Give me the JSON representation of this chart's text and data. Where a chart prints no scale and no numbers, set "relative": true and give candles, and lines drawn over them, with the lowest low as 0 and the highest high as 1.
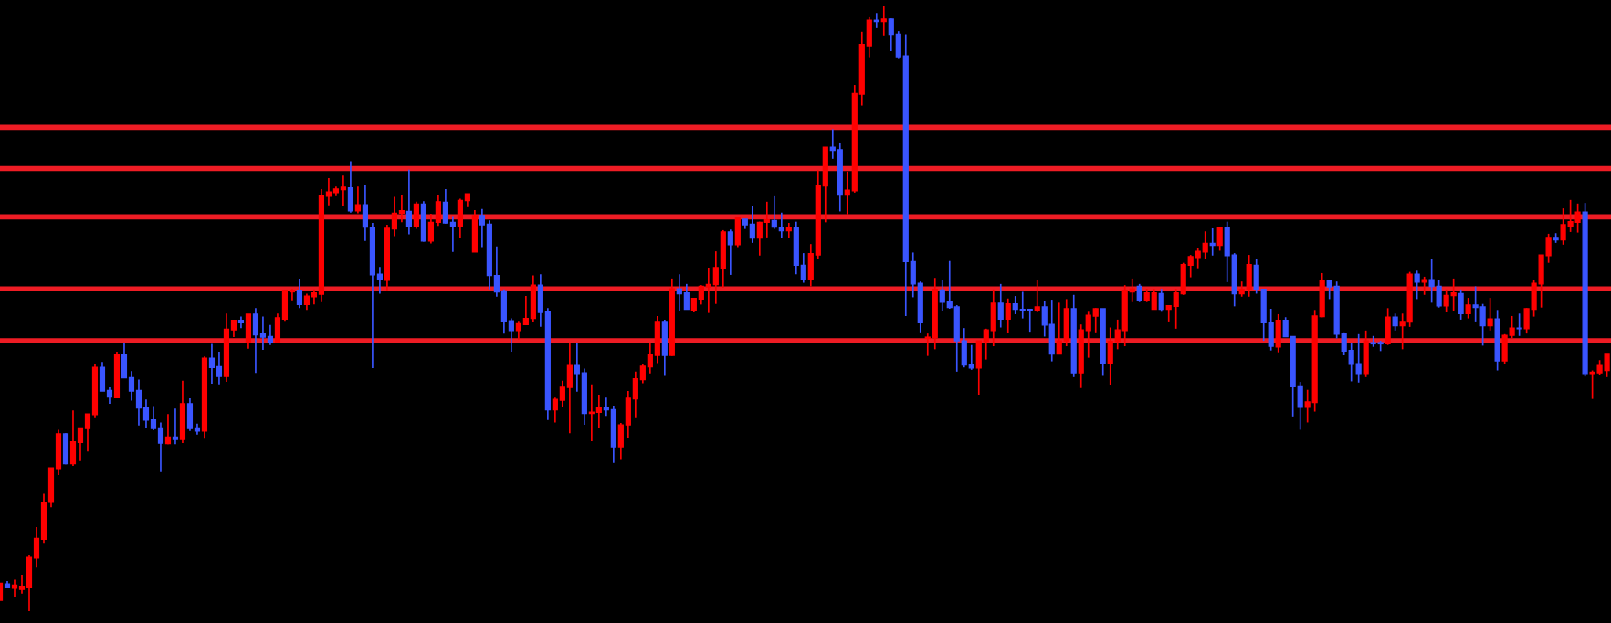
{
  "chart_data": {
    "type": "candlestick",
    "relative": true,
    "categories": [
      null,
      null,
      null,
      null,
      null,
      null,
      null,
      null,
      null,
      null,
      null,
      null,
      null,
      null,
      null,
      null,
      null,
      null,
      null,
      null,
      null,
      null,
      null,
      null,
      null,
      null,
      null,
      null,
      null,
      null,
      null,
      null,
      null,
      null,
      null,
      null,
      null,
      null,
      null,
      null,
      null,
      null,
      null,
      null,
      null,
      null,
      null,
      null,
      null,
      null,
      null,
      null,
      null,
      null,
      null,
      null,
      null,
      null,
      null,
      null,
      null,
      null,
      null,
      null,
      null,
      null,
      null,
      null,
      null,
      null,
      null,
      null,
      null,
      null,
      null,
      null,
      null,
      null,
      null,
      null,
      null,
      null,
      null,
      null,
      null,
      null,
      null,
      null,
      null,
      null,
      null,
      null,
      null,
      null,
      null,
      null,
      null,
      null,
      null,
      null,
      null,
      null,
      null,
      null,
      null,
      null,
      null,
      null,
      null,
      null,
      null,
      null,
      null,
      null,
      null,
      null,
      null,
      null,
      null,
      null,
      null,
      null,
      null,
      null,
      null,
      null,
      null,
      null,
      null,
      null,
      null,
      null,
      null,
      null,
      null,
      null,
      null,
      null,
      null,
      null,
      null,
      null,
      null,
      null,
      null,
      null,
      null,
      null,
      null,
      null,
      null,
      null,
      null,
      null,
      null,
      null,
      null,
      null,
      null,
      null,
      null,
      null,
      null,
      null,
      null,
      null,
      null,
      null,
      null,
      null,
      null,
      null,
      null,
      null,
      null,
      null,
      null,
      null,
      null,
      null,
      null,
      null,
      null,
      null,
      null,
      null,
      null,
      null,
      null,
      null,
      null,
      null,
      null,
      null,
      null,
      null,
      null,
      null,
      null,
      null,
      null,
      null,
      null,
      null,
      null,
      null,
      null,
      null,
      null,
      null,
      null,
      null,
      null,
      null,
      null,
      null,
      null,
      null,
      null,
      null,
      null
    ],
    "colors": [
      "#ff0000",
      "#3a55ff",
      "#ff0000",
      "#ff0000",
      "#ff0000",
      "#ff0000",
      "#ff0000",
      "#ff0000",
      "#ff0000",
      "#3a55ff",
      "#ff0000",
      "#ff0000",
      "#ff0000",
      "#ff0000",
      "#3a55ff",
      "#3a55ff",
      "#ff0000",
      "#3a55ff",
      "#3a55ff",
      "#3a55ff",
      "#3a55ff",
      "#3a55ff",
      "#3a55ff",
      "#ff0000",
      "#3a55ff",
      "#ff0000",
      "#3a55ff",
      "#3a55ff",
      "#ff0000",
      "#3a55ff",
      "#3a55ff",
      "#ff0000",
      "#ff0000",
      "#3a55ff",
      "#ff0000",
      "#3a55ff",
      "#3a55ff",
      "#3a55ff",
      "#ff0000",
      "#ff0000",
      "#ff0000",
      "#3a55ff",
      "#ff0000",
      "#ff0000",
      "#ff0000",
      "#ff0000",
      "#ff0000",
      "#ff0000",
      "#3a55ff",
      "#ff0000",
      "#3a55ff",
      "#3a55ff",
      "#3a55ff",
      "#ff0000",
      "#ff0000",
      "#ff0000",
      "#3a55ff",
      "#ff0000",
      "#3a55ff",
      "#ff0000",
      "#ff0000",
      "#3a55ff",
      "#3a55ff",
      "#ff0000",
      "#ff0000",
      "#ff0000",
      "#3a55ff",
      "#3a55ff",
      "#3a55ff",
      "#3a55ff",
      "#3a55ff",
      "#ff0000",
      "#ff0000",
      "#ff0000",
      "#3a55ff",
      "#3a55ff",
      "#ff0000",
      "#ff0000",
      "#ff0000",
      "#3a55ff",
      "#3a55ff",
      "#ff0000",
      "#ff0000",
      "#3a55ff",
      "#3a55ff",
      "#ff0000",
      "#ff0000",
      "#ff0000",
      "#ff0000",
      "#ff0000",
      "#ff0000",
      "#3a55ff",
      "#ff0000",
      "#3a55ff",
      "#3a55ff",
      "#ff0000",
      "#ff0000",
      "#ff0000",
      "#ff0000",
      "#ff0000",
      "#3a55ff",
      "#ff0000",
      "#3a55ff",
      "#3a55ff",
      "#ff0000",
      "#ff0000",
      "#3a55ff",
      "#3a55ff",
      "#ff0000",
      "#3a55ff",
      "#3a55ff",
      "#ff0000",
      "#ff0000",
      "#ff0000",
      "#3a55ff",
      "#3a55ff",
      "#ff0000",
      "#ff0000",
      "#ff0000",
      "#ff0000",
      "#3a55ff",
      "#ff0000",
      "#3a55ff",
      "#3a55ff",
      "#3a55ff",
      "#3a55ff",
      "#3a55ff",
      "#ff0000",
      "#ff0000",
      "#3a55ff",
      "#3a55ff",
      "#3a55ff",
      "#3a55ff",
      "#3a55ff",
      "#ff0000",
      "#ff0000",
      "#ff0000",
      "#3a55ff",
      "#ff0000",
      "#3a55ff",
      "#3a55ff",
      "#3a55ff",
      "#ff0000",
      "#3a55ff",
      "#3a55ff",
      "#ff0000",
      "#ff0000",
      "#3a55ff",
      "#ff0000",
      "#ff0000",
      "#ff0000",
      "#3a55ff",
      "#ff0000",
      "#ff0000",
      "#ff0000",
      "#ff0000",
      "#3a55ff",
      "#ff0000",
      "#ff0000",
      "#3a55ff",
      "#ff0000",
      "#ff0000",
      "#ff0000",
      "#ff0000",
      "#ff0000",
      "#ff0000",
      "#3a55ff",
      "#ff0000",
      "#3a55ff",
      "#3a55ff",
      "#ff0000",
      "#ff0000",
      "#3a55ff",
      "#3a55ff",
      "#3a55ff",
      "#ff0000",
      "#3a55ff",
      "#3a55ff",
      "#3a55ff",
      "#ff0000",
      "#ff0000",
      "#ff0000",
      "#3a55ff",
      "#3a55ff",
      "#3a55ff",
      "#3a55ff",
      "#3a55ff",
      "#ff0000",
      "#3a55ff",
      "#3a55ff",
      "#ff0000",
      "#3a55ff",
      "#ff0000",
      "#ff0000",
      "#3a55ff",
      "#ff0000",
      "#3a55ff",
      "#3a55ff",
      "#ff0000",
      "#ff0000",
      "#3a55ff",
      "#ff0000",
      "#3a55ff",
      "#3a55ff",
      "#ff0000",
      "#3a55ff",
      "#ff0000",
      "#ff0000",
      "#3a55ff",
      "#ff0000",
      "#ff0000",
      "#ff0000",
      "#ff0000",
      "#3a55ff",
      "#ff0000",
      "#ff0000",
      "#ff0000",
      "#3a55ff",
      "#ff0000",
      "#ff0000",
      "#ff0000"
    ],
    "ohlc": [
      [
        0.018,
        0.046,
        0.018,
        0.046
      ],
      [
        0.045,
        0.05,
        0.038,
        0.039
      ],
      [
        0.038,
        0.052,
        0.023,
        0.043
      ],
      [
        0.036,
        0.06,
        0.029,
        0.04
      ],
      [
        0.039,
        0.092,
        0.0,
        0.089
      ],
      [
        0.088,
        0.139,
        0.072,
        0.12
      ],
      [
        0.119,
        0.194,
        0.113,
        0.18
      ],
      [
        0.18,
        0.237,
        0.172,
        0.237
      ],
      [
        0.236,
        0.3,
        0.225,
        0.293
      ],
      [
        0.293,
        0.294,
        0.243,
        0.244
      ],
      [
        0.244,
        0.332,
        0.24,
        0.28
      ],
      [
        0.279,
        0.303,
        0.248,
        0.303
      ],
      [
        0.302,
        0.326,
        0.264,
        0.326
      ],
      [
        0.325,
        0.409,
        0.319,
        0.403
      ],
      [
        0.403,
        0.412,
        0.364,
        0.364
      ],
      [
        0.365,
        0.37,
        0.343,
        0.354
      ],
      [
        0.353,
        0.429,
        0.353,
        0.424
      ],
      [
        0.424,
        0.444,
        0.386,
        0.386
      ],
      [
        0.386,
        0.397,
        0.348,
        0.364
      ],
      [
        0.365,
        0.383,
        0.307,
        0.336
      ],
      [
        0.336,
        0.35,
        0.303,
        0.316
      ],
      [
        0.316,
        0.339,
        0.299,
        0.302
      ],
      [
        0.303,
        0.312,
        0.23,
        0.278
      ],
      [
        0.277,
        0.326,
        0.276,
        0.288
      ],
      [
        0.288,
        0.335,
        0.276,
        0.284
      ],
      [
        0.284,
        0.381,
        0.278,
        0.343
      ],
      [
        0.343,
        0.352,
        0.298,
        0.302
      ],
      [
        0.303,
        0.31,
        0.292,
        0.298
      ],
      [
        0.298,
        0.421,
        0.285,
        0.418
      ],
      [
        0.418,
        0.442,
        0.376,
        0.403
      ],
      [
        0.404,
        0.429,
        0.375,
        0.388
      ],
      [
        0.388,
        0.492,
        0.379,
        0.466
      ],
      [
        0.465,
        0.481,
        0.453,
        0.481
      ],
      [
        0.481,
        0.487,
        0.468,
        0.477
      ],
      [
        0.445,
        0.491,
        0.434,
        0.491
      ],
      [
        0.491,
        0.501,
        0.394,
        0.457
      ],
      [
        0.458,
        0.487,
        0.432,
        0.453
      ],
      [
        0.454,
        0.473,
        0.44,
        0.445
      ],
      [
        0.444,
        0.492,
        0.444,
        0.485
      ],
      [
        0.483,
        0.53,
        0.48,
        0.53
      ],
      [
        0.528,
        0.533,
        0.514,
        0.53
      ],
      [
        0.53,
        0.55,
        0.501,
        0.507
      ],
      [
        0.507,
        0.525,
        0.498,
        0.521
      ],
      [
        0.52,
        0.532,
        0.507,
        0.526
      ],
      [
        0.524,
        0.698,
        0.511,
        0.687
      ],
      [
        0.686,
        0.716,
        0.671,
        0.693
      ],
      [
        0.692,
        0.702,
        0.686,
        0.698
      ],
      [
        0.697,
        0.72,
        0.669,
        0.701
      ],
      [
        0.7,
        0.744,
        0.659,
        0.662
      ],
      [
        0.662,
        0.702,
        0.658,
        0.672
      ],
      [
        0.672,
        0.705,
        0.612,
        0.635
      ],
      [
        0.635,
        0.642,
        0.402,
        0.556
      ],
      [
        0.557,
        0.569,
        0.525,
        0.548
      ],
      [
        0.547,
        0.639,
        0.529,
        0.633
      ],
      [
        0.632,
        0.685,
        0.62,
        0.658
      ],
      [
        0.658,
        0.689,
        0.643,
        0.662
      ],
      [
        0.661,
        0.73,
        0.623,
        0.637
      ],
      [
        0.636,
        0.677,
        0.632,
        0.673
      ],
      [
        0.673,
        0.678,
        0.611,
        0.612
      ],
      [
        0.612,
        0.657,
        0.608,
        0.643
      ],
      [
        0.643,
        0.689,
        0.637,
        0.677
      ],
      [
        0.676,
        0.698,
        0.641,
        0.642
      ],
      [
        0.643,
        0.652,
        0.594,
        0.636
      ],
      [
        0.636,
        0.682,
        0.618,
        0.679
      ],
      [
        0.679,
        0.69,
        0.668,
        0.69
      ],
      [
        0.594,
        0.663,
        0.594,
        0.654
      ],
      [
        0.654,
        0.665,
        0.602,
        0.639
      ],
      [
        0.64,
        0.646,
        0.532,
        0.555
      ],
      [
        0.555,
        0.603,
        0.52,
        0.528
      ],
      [
        0.528,
        0.532,
        0.459,
        0.479
      ],
      [
        0.48,
        0.484,
        0.429,
        0.464
      ],
      [
        0.464,
        0.48,
        0.449,
        0.475
      ],
      [
        0.474,
        0.521,
        0.473,
        0.484
      ],
      [
        0.484,
        0.555,
        0.478,
        0.539
      ],
      [
        0.539,
        0.557,
        0.47,
        0.494
      ],
      [
        0.495,
        0.501,
        0.316,
        0.333
      ],
      [
        0.333,
        0.353,
        0.312,
        0.35
      ],
      [
        0.349,
        0.381,
        0.338,
        0.37
      ],
      [
        0.37,
        0.443,
        0.294,
        0.406
      ],
      [
        0.406,
        0.444,
        0.363,
        0.393
      ],
      [
        0.394,
        0.401,
        0.308,
        0.327
      ],
      [
        0.327,
        0.375,
        0.281,
        0.329
      ],
      [
        0.329,
        0.358,
        0.302,
        0.337
      ],
      [
        0.337,
        0.353,
        0.323,
        0.333
      ],
      [
        0.333,
        0.34,
        0.245,
        0.272
      ],
      [
        0.272,
        0.311,
        0.25,
        0.308
      ],
      [
        0.308,
        0.364,
        0.287,
        0.352
      ],
      [
        0.351,
        0.396,
        0.319,
        0.384
      ],
      [
        0.383,
        0.408,
        0.377,
        0.405
      ],
      [
        0.404,
        0.444,
        0.393,
        0.424
      ],
      [
        0.423,
        0.488,
        0.41,
        0.479
      ],
      [
        0.479,
        0.482,
        0.389,
        0.423
      ],
      [
        0.423,
        0.55,
        0.422,
        0.533
      ],
      [
        0.533,
        0.557,
        0.496,
        0.525
      ],
      [
        0.526,
        0.541,
        0.499,
        0.499
      ],
      [
        0.498,
        0.518,
        0.494,
        0.517
      ],
      [
        0.516,
        0.539,
        0.507,
        0.537
      ],
      [
        0.536,
        0.568,
        0.493,
        0.54
      ],
      [
        0.54,
        0.595,
        0.508,
        0.568
      ],
      [
        0.567,
        0.63,
        0.535,
        0.627
      ],
      [
        0.627,
        0.631,
        0.556,
        0.606
      ],
      [
        0.606,
        0.65,
        0.602,
        0.65
      ],
      [
        0.648,
        0.648,
        0.632,
        0.639
      ],
      [
        0.64,
        0.67,
        0.609,
        0.617
      ],
      [
        0.617,
        0.644,
        0.588,
        0.643
      ],
      [
        0.643,
        0.677,
        0.618,
        0.647
      ],
      [
        0.646,
        0.686,
        0.632,
        0.635
      ],
      [
        0.635,
        0.659,
        0.617,
        0.629
      ],
      [
        0.629,
        0.642,
        0.617,
        0.635
      ],
      [
        0.635,
        0.644,
        0.557,
        0.572
      ],
      [
        0.572,
        0.592,
        0.543,
        0.549
      ],
      [
        0.549,
        0.607,
        0.537,
        0.591
      ],
      [
        0.589,
        0.729,
        0.582,
        0.704
      ],
      [
        0.703,
        0.767,
        0.643,
        0.767
      ],
      [
        0.767,
        0.797,
        0.748,
        0.762
      ],
      [
        0.763,
        0.775,
        0.661,
        0.688
      ],
      [
        0.688,
        0.727,
        0.656,
        0.696
      ],
      [
        0.695,
        0.87,
        0.692,
        0.856
      ],
      [
        0.855,
        0.958,
        0.836,
        0.937
      ],
      [
        0.935,
        0.982,
        0.916,
        0.977
      ],
      [
        0.977,
        0.989,
        0.964,
        0.975
      ],
      [
        0.975,
        1.0,
        0.952,
        0.979
      ],
      [
        0.979,
        0.98,
        0.926,
        0.954
      ],
      [
        0.954,
        0.959,
        0.913,
        0.917
      ],
      [
        0.918,
        0.954,
        0.488,
        0.578
      ],
      [
        0.578,
        0.593,
        0.519,
        0.541
      ],
      [
        0.542,
        0.545,
        0.461,
        0.477
      ],
      [
        0.451,
        0.459,
        0.422,
        0.453
      ],
      [
        0.452,
        0.551,
        0.433,
        0.532
      ],
      [
        0.531,
        0.547,
        0.496,
        0.511
      ],
      [
        0.512,
        0.579,
        0.5,
        0.502
      ],
      [
        0.503,
        0.506,
        0.396,
        0.447
      ],
      [
        0.447,
        0.468,
        0.403,
        0.407
      ],
      [
        0.408,
        0.44,
        0.399,
        0.402
      ],
      [
        0.402,
        0.447,
        0.358,
        0.447
      ],
      [
        0.446,
        0.467,
        0.416,
        0.465
      ],
      [
        0.464,
        0.532,
        0.438,
        0.509
      ],
      [
        0.509,
        0.541,
        0.469,
        0.483
      ],
      [
        0.483,
        0.517,
        0.46,
        0.508
      ],
      [
        0.508,
        0.521,
        0.491,
        0.499
      ],
      [
        0.499,
        0.528,
        0.484,
        0.497
      ],
      [
        0.499,
        0.5,
        0.462,
        0.497
      ],
      [
        0.497,
        0.547,
        0.494,
        0.503
      ],
      [
        0.503,
        0.513,
        0.454,
        0.473
      ],
      [
        0.474,
        0.515,
        0.413,
        0.425
      ],
      [
        0.425,
        0.51,
        0.425,
        0.447
      ],
      [
        0.447,
        0.516,
        0.438,
        0.5
      ],
      [
        0.5,
        0.523,
        0.387,
        0.394
      ],
      [
        0.394,
        0.474,
        0.369,
        0.465
      ],
      [
        0.464,
        0.495,
        0.419,
        0.489
      ],
      [
        0.488,
        0.501,
        0.461,
        0.5
      ],
      [
        0.5,
        0.5,
        0.389,
        0.409
      ],
      [
        0.409,
        0.469,
        0.374,
        0.446
      ],
      [
        0.446,
        0.482,
        0.433,
        0.465
      ],
      [
        0.464,
        0.539,
        0.438,
        0.53
      ],
      [
        0.528,
        0.55,
        0.511,
        0.533
      ],
      [
        0.537,
        0.541,
        0.511,
        0.514
      ],
      [
        0.514,
        0.533,
        0.511,
        0.526
      ],
      [
        0.499,
        0.533,
        0.499,
        0.526
      ],
      [
        0.525,
        0.533,
        0.495,
        0.499
      ],
      [
        0.499,
        0.506,
        0.479,
        0.505
      ],
      [
        0.504,
        0.533,
        0.467,
        0.526
      ],
      [
        0.525,
        0.576,
        0.523,
        0.573
      ],
      [
        0.572,
        0.589,
        0.552,
        0.586
      ],
      [
        0.585,
        0.601,
        0.567,
        0.595
      ],
      [
        0.594,
        0.628,
        0.582,
        0.608
      ],
      [
        0.608,
        0.633,
        0.588,
        0.605
      ],
      [
        0.605,
        0.635,
        0.596,
        0.635
      ],
      [
        0.635,
        0.644,
        0.544,
        0.588
      ],
      [
        0.589,
        0.592,
        0.504,
        0.525
      ],
      [
        0.525,
        0.545,
        0.52,
        0.532
      ],
      [
        0.532,
        0.589,
        0.52,
        0.573
      ],
      [
        0.572,
        0.582,
        0.525,
        0.532
      ],
      [
        0.532,
        0.532,
        0.447,
        0.477
      ],
      [
        0.477,
        0.5,
        0.431,
        0.438
      ],
      [
        0.437,
        0.491,
        0.428,
        0.481
      ],
      [
        0.481,
        0.486,
        0.454,
        0.454
      ],
      [
        0.454,
        0.454,
        0.322,
        0.371
      ],
      [
        0.371,
        0.379,
        0.3,
        0.337
      ],
      [
        0.337,
        0.366,
        0.312,
        0.346
      ],
      [
        0.345,
        0.498,
        0.33,
        0.488
      ],
      [
        0.487,
        0.559,
        0.486,
        0.546
      ],
      [
        0.546,
        0.546,
        0.516,
        0.536
      ],
      [
        0.537,
        0.545,
        0.451,
        0.458
      ],
      [
        0.459,
        0.461,
        0.423,
        0.43
      ],
      [
        0.431,
        0.443,
        0.38,
        0.408
      ],
      [
        0.409,
        0.458,
        0.378,
        0.393
      ],
      [
        0.393,
        0.464,
        0.387,
        0.447
      ],
      [
        0.444,
        0.455,
        0.437,
        0.442
      ],
      [
        0.444,
        0.447,
        0.43,
        0.442
      ],
      [
        0.442,
        0.501,
        0.44,
        0.486
      ],
      [
        0.486,
        0.492,
        0.464,
        0.472
      ],
      [
        0.472,
        0.492,
        0.433,
        0.479
      ],
      [
        0.478,
        0.561,
        0.47,
        0.557
      ],
      [
        0.557,
        0.563,
        0.516,
        0.544
      ],
      [
        0.544,
        0.553,
        0.523,
        0.548
      ],
      [
        0.548,
        0.583,
        0.51,
        0.537
      ],
      [
        0.537,
        0.547,
        0.502,
        0.505
      ],
      [
        0.505,
        0.532,
        0.494,
        0.522
      ],
      [
        0.522,
        0.55,
        0.497,
        0.526
      ],
      [
        0.525,
        0.532,
        0.482,
        0.492
      ],
      [
        0.492,
        0.518,
        0.484,
        0.506
      ],
      [
        0.506,
        0.537,
        0.479,
        0.502
      ],
      [
        0.503,
        0.508,
        0.439,
        0.472
      ],
      [
        0.472,
        0.518,
        0.464,
        0.483
      ],
      [
        0.483,
        0.498,
        0.398,
        0.414
      ],
      [
        0.414,
        0.458,
        0.408,
        0.456
      ],
      [
        0.456,
        0.488,
        0.451,
        0.468
      ],
      [
        0.468,
        0.492,
        0.455,
        0.467
      ],
      [
        0.467,
        0.501,
        0.459,
        0.5
      ],
      [
        0.499,
        0.547,
        0.487,
        0.542
      ],
      [
        0.541,
        0.589,
        0.502,
        0.589
      ],
      [
        0.588,
        0.624,
        0.576,
        0.618
      ],
      [
        0.618,
        0.625,
        0.609,
        0.614
      ],
      [
        0.614,
        0.666,
        0.606,
        0.639
      ],
      [
        0.637,
        0.68,
        0.627,
        0.644
      ],
      [
        0.643,
        0.674,
        0.626,
        0.66
      ],
      [
        0.66,
        0.675,
        0.388,
        0.393
      ],
      [
        0.393,
        0.398,
        0.351,
        0.395
      ],
      [
        0.394,
        0.415,
        0.391,
        0.406
      ],
      [
        0.398,
        0.426,
        0.387,
        0.426
      ]
    ],
    "ref_lines": [
      {
        "axis": "y",
        "value": 0.8,
        "color": "#ee1c24"
      },
      {
        "axis": "y",
        "value": 0.732,
        "color": "#ee1c24"
      },
      {
        "axis": "y",
        "value": 0.652,
        "color": "#ee1c24"
      },
      {
        "axis": "y",
        "value": 0.533,
        "color": "#ee1c24"
      },
      {
        "axis": "y",
        "value": 0.447,
        "color": "#ee1c24"
      }
    ]
  }
}
